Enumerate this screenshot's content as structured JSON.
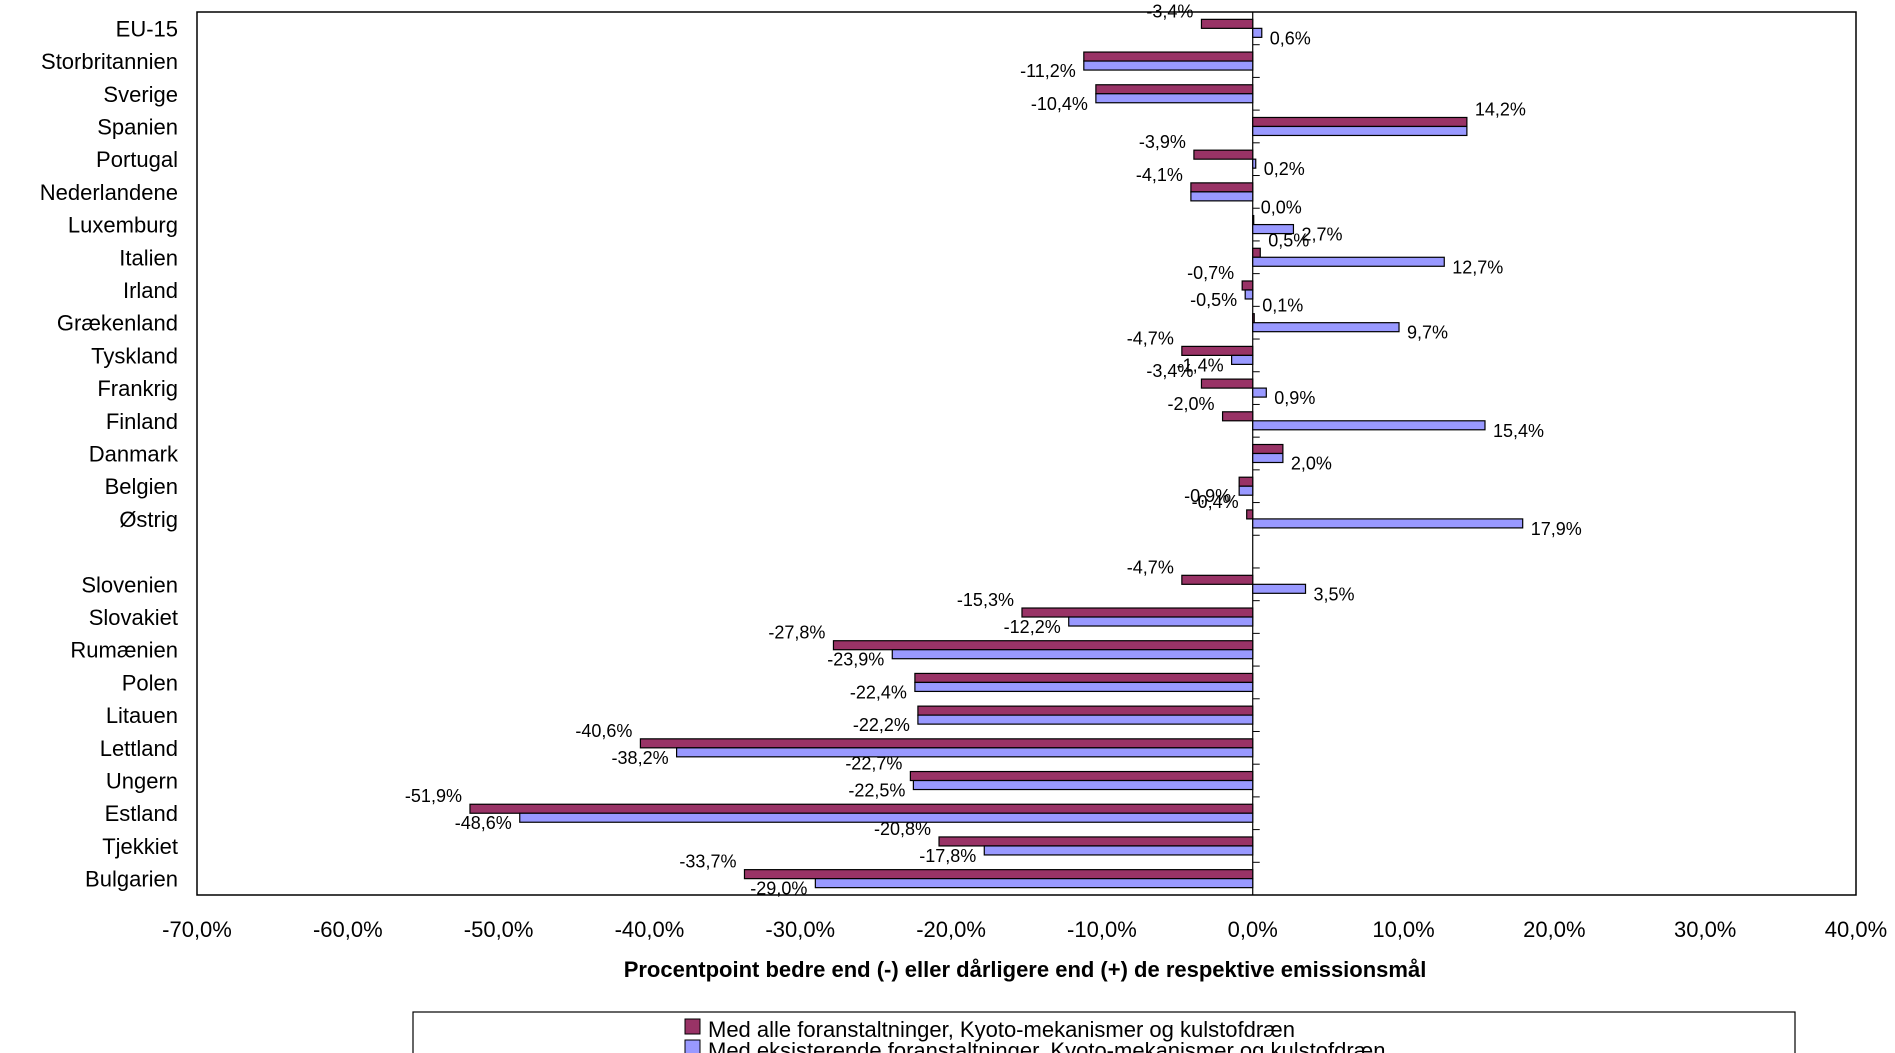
{
  "chart_data": {
    "type": "bar",
    "orientation": "horizontal",
    "xlabel": "Procentpoint bedre end (-) eller dårligere end (+) de respektive emissionsmål",
    "xlim": [
      -0.7,
      0.4
    ],
    "xticks": [
      "-70,0%",
      "-60,0%",
      "-50,0%",
      "-40,0%",
      "-30,0%",
      "-20,0%",
      "-10,0%",
      "0,0%",
      "10,0%",
      "20,0%",
      "30,0%",
      "40,0%"
    ],
    "legend_position": "bottom",
    "categories": [
      "EU-15",
      "Storbritannien",
      "Sverige",
      "Spanien",
      "Portugal",
      "Nederlandene",
      "Luxemburg",
      "Italien",
      "Irland",
      "Grækenland",
      "Tyskland",
      "Frankrig",
      "Finland",
      "Danmark",
      "Belgien",
      "Østrig",
      "",
      "Slovenien",
      "Slovakiet",
      "Rumænien",
      "Polen",
      "Litauen",
      "Lettland",
      "Ungern",
      "Estland",
      "Tjekkiet",
      "Bulgarien"
    ],
    "series": [
      {
        "name": "Med alle foranstaltninger, Kyoto-mekanismer og kulstofdræn",
        "color": "#993366",
        "values": [
          -0.034,
          -0.112,
          -0.104,
          0.142,
          -0.039,
          -0.041,
          0.0,
          0.005,
          -0.007,
          0.001,
          -0.047,
          -0.034,
          -0.02,
          0.02,
          -0.009,
          -0.004,
          null,
          -0.047,
          -0.153,
          -0.278,
          -0.224,
          -0.222,
          -0.406,
          -0.227,
          -0.519,
          -0.208,
          -0.337
        ],
        "labels": [
          "-3,4%",
          "",
          "",
          "14,2%",
          "-3,9%",
          "-4,1%",
          "0,0%",
          "0,5%",
          "-0,7%",
          "0,1%",
          "-4,7%",
          "-3,4%",
          "-2,0%",
          "",
          "",
          "-0,4%",
          "",
          "-4,7%",
          "-15,3%",
          "-27,8%",
          "",
          "",
          "-40,6%",
          "-22,7%",
          "-51,9%",
          "-20,8%",
          "-33,7%"
        ]
      },
      {
        "name": "Med eksisterende foranstaltninger, Kyoto-mekanismer og kulstofdræn",
        "color": "#9999ff",
        "values": [
          0.006,
          -0.112,
          -0.104,
          0.142,
          0.002,
          -0.041,
          0.027,
          0.127,
          -0.005,
          0.097,
          -0.014,
          0.009,
          0.154,
          0.02,
          -0.009,
          0.179,
          null,
          0.035,
          -0.122,
          -0.239,
          -0.224,
          -0.222,
          -0.382,
          -0.225,
          -0.486,
          -0.178,
          -0.29
        ],
        "labels": [
          "0,6%",
          "-11,2%",
          "-10,4%",
          "",
          "0,2%",
          "",
          "2,7%",
          "12,7%",
          "-0,5%",
          "9,7%",
          "-1,4%",
          "0,9%",
          "15,4%",
          "2,0%",
          "-0,9%",
          "17,9%",
          "",
          "3,5%",
          "-12,2%",
          "-23,9%",
          "-22,4%",
          "-22,2%",
          "-38,2%",
          "-22,5%",
          "-48,6%",
          "-17,8%",
          "-29,0%"
        ]
      }
    ]
  }
}
